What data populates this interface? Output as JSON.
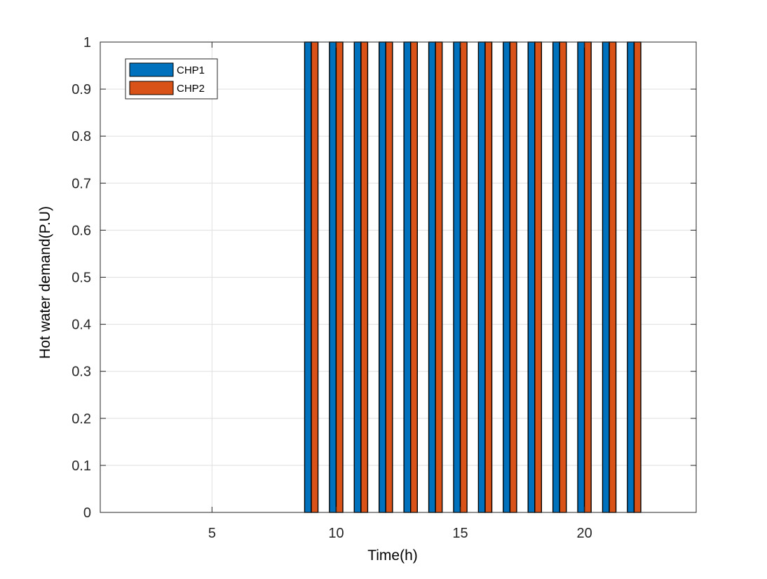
{
  "chart_data": {
    "type": "bar",
    "title": "",
    "xlabel": "Time(h)",
    "ylabel": "Hot water demand(P.U)",
    "xlim": [
      0.5,
      24.5
    ],
    "ylim": [
      0,
      1
    ],
    "x_ticks": [
      5,
      10,
      15,
      20
    ],
    "y_ticks": [
      0,
      0.1,
      0.2,
      0.3,
      0.4,
      0.5,
      0.6,
      0.7,
      0.8,
      0.9,
      1
    ],
    "y_tick_labels": [
      "0",
      "0.1",
      "0.2",
      "0.3",
      "0.4",
      "0.5",
      "0.6",
      "0.7",
      "0.8",
      "0.9",
      "1"
    ],
    "grid": true,
    "legend_position": "top-left",
    "categories": [
      1,
      2,
      3,
      4,
      5,
      6,
      7,
      8,
      9,
      10,
      11,
      12,
      13,
      14,
      15,
      16,
      17,
      18,
      19,
      20,
      21,
      22
    ],
    "series": [
      {
        "name": "CHP1",
        "color": "#0072bd",
        "values": [
          0,
          0,
          0,
          0,
          0,
          0,
          0,
          0,
          1,
          1,
          1,
          1,
          1,
          1,
          1,
          1,
          1,
          1,
          1,
          1,
          1,
          1
        ]
      },
      {
        "name": "CHP2",
        "color": "#d95319",
        "values": [
          0,
          0,
          0,
          0,
          0,
          0,
          0,
          0,
          1,
          1,
          1,
          1,
          1,
          1,
          1,
          1,
          1,
          1,
          1,
          1,
          1,
          1
        ]
      }
    ]
  }
}
